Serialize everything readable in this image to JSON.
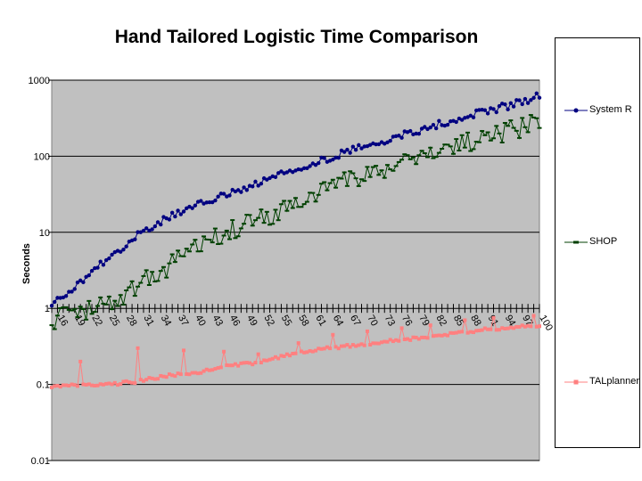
{
  "chart_data": {
    "type": "line",
    "title": "Hand Tailored Logistic Time Comparison",
    "xlabel": "",
    "ylabel": "Seconds",
    "yscale": "log",
    "ylim": [
      0.01,
      1000
    ],
    "y_ticks": [
      "1000",
      "100",
      "10",
      "1",
      "0.1",
      "0.01"
    ],
    "y_tick_values": [
      1000,
      100,
      10,
      1,
      0.1,
      0.01
    ],
    "xlim": [
      15,
      100
    ],
    "x_ticks": [
      "16",
      "19",
      "22",
      "25",
      "28",
      "31",
      "34",
      "37",
      "40",
      "43",
      "46",
      "49",
      "52",
      "55",
      "58",
      "61",
      "64",
      "67",
      "70",
      "73",
      "76",
      "79",
      "82",
      "85",
      "88",
      "91",
      "94",
      "97",
      "100"
    ],
    "x_tick_values": [
      16,
      19,
      22,
      25,
      28,
      31,
      34,
      37,
      40,
      43,
      46,
      49,
      52,
      55,
      58,
      61,
      64,
      67,
      70,
      73,
      76,
      79,
      82,
      85,
      88,
      91,
      94,
      97,
      100
    ],
    "grid": true,
    "legend_position": "right",
    "background_color": "#c0c0c0",
    "series": [
      {
        "name": "System R",
        "color": "#000080",
        "marker": "circle",
        "anchors": [
          [
            15,
            1.1
          ],
          [
            18,
            1.6
          ],
          [
            22,
            3.0
          ],
          [
            26,
            5.5
          ],
          [
            30,
            9.0
          ],
          [
            35,
            15
          ],
          [
            40,
            22
          ],
          [
            45,
            30
          ],
          [
            50,
            42
          ],
          [
            55,
            58
          ],
          [
            60,
            80
          ],
          [
            65,
            105
          ],
          [
            70,
            140
          ],
          [
            75,
            180
          ],
          [
            80,
            230
          ],
          [
            85,
            300
          ],
          [
            90,
            380
          ],
          [
            95,
            470
          ],
          [
            100,
            620
          ]
        ]
      },
      {
        "name": "SHOP",
        "color": "#004000",
        "marker": "dash",
        "anchors": [
          [
            15,
            0.7
          ],
          [
            19,
            0.8
          ],
          [
            22,
            1.05
          ],
          [
            26,
            1.3
          ],
          [
            30,
            2.0
          ],
          [
            35,
            3.5
          ],
          [
            40,
            7.0
          ],
          [
            45,
            10
          ],
          [
            50,
            13
          ],
          [
            55,
            20
          ],
          [
            60,
            28
          ],
          [
            65,
            45
          ],
          [
            70,
            60
          ],
          [
            75,
            80
          ],
          [
            80,
            110
          ],
          [
            85,
            140
          ],
          [
            90,
            175
          ],
          [
            95,
            215
          ],
          [
            100,
            280
          ]
        ]
      },
      {
        "name": "TALplanner",
        "color": "#ff8080",
        "marker": "square",
        "anchors": [
          [
            15,
            0.095
          ],
          [
            20,
            0.1
          ],
          [
            25,
            0.1
          ],
          [
            30,
            0.11
          ],
          [
            35,
            0.13
          ],
          [
            40,
            0.14
          ],
          [
            45,
            0.17
          ],
          [
            50,
            0.19
          ],
          [
            55,
            0.23
          ],
          [
            60,
            0.28
          ],
          [
            65,
            0.31
          ],
          [
            70,
            0.34
          ],
          [
            75,
            0.38
          ],
          [
            80,
            0.42
          ],
          [
            85,
            0.47
          ],
          [
            90,
            0.52
          ],
          [
            95,
            0.56
          ],
          [
            100,
            0.6
          ]
        ],
        "spikes": [
          [
            20,
            0.2
          ],
          [
            30,
            0.3
          ],
          [
            38,
            0.28
          ],
          [
            45,
            0.27
          ],
          [
            51,
            0.25
          ],
          [
            58,
            0.35
          ],
          [
            64,
            0.45
          ],
          [
            70,
            0.5
          ],
          [
            76,
            0.55
          ],
          [
            81,
            0.6
          ],
          [
            87,
            0.7
          ],
          [
            92,
            0.75
          ],
          [
            99,
            0.8
          ]
        ]
      }
    ]
  }
}
